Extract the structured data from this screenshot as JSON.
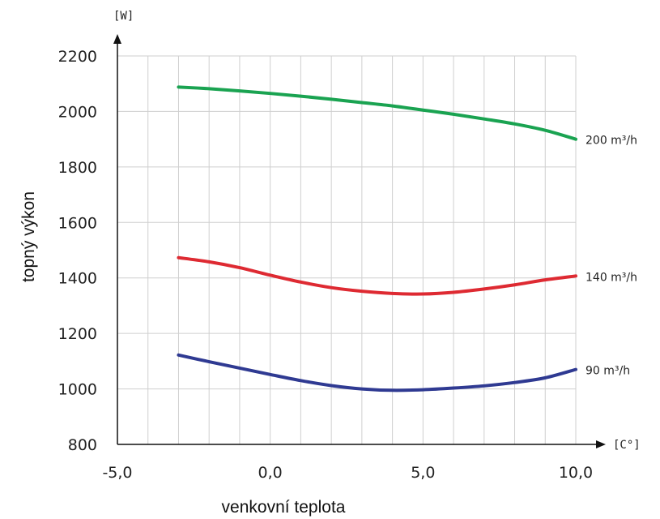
{
  "chart_data": {
    "type": "line",
    "xlabel": "venkovní teplota",
    "ylabel": "topný výkon",
    "x_unit": "[C°]",
    "y_unit": "[W]",
    "xlim": [
      -5,
      10
    ],
    "ylim": [
      800,
      2200
    ],
    "x_ticks": [
      -5,
      0,
      5,
      10
    ],
    "x_tick_labels": [
      "-5,0",
      "0,0",
      "5,0",
      "10,0"
    ],
    "y_ticks": [
      800,
      1000,
      1200,
      1400,
      1600,
      1800,
      2000,
      2200
    ],
    "y_tick_labels": [
      "800",
      "1000",
      "1200",
      "1400",
      "1600",
      "1800",
      "2000",
      "2200"
    ],
    "grid": true,
    "series": [
      {
        "name": "200 m³/h",
        "color": "#1aa351",
        "x": [
          -3,
          -2,
          -1,
          0,
          1,
          2,
          3,
          4,
          5,
          6,
          7,
          8,
          9,
          10
        ],
        "values": [
          2088,
          2082,
          2074,
          2065,
          2055,
          2044,
          2032,
          2020,
          2005,
          1990,
          1973,
          1955,
          1932,
          1900
        ]
      },
      {
        "name": "140 m³/h",
        "color": "#de2a32",
        "x": [
          -3,
          -2,
          -1,
          0,
          1,
          2,
          3,
          4,
          5,
          6,
          7,
          8,
          9,
          10
        ],
        "values": [
          1473,
          1458,
          1437,
          1410,
          1385,
          1365,
          1352,
          1344,
          1342,
          1348,
          1360,
          1375,
          1393,
          1407
        ]
      },
      {
        "name": "90 m³/h",
        "color": "#2f3a92",
        "x": [
          -3,
          -2,
          -1,
          0,
          1,
          2,
          3,
          4,
          5,
          6,
          7,
          8,
          9,
          10
        ],
        "values": [
          1122,
          1098,
          1075,
          1052,
          1030,
          1012,
          1000,
          995,
          997,
          1003,
          1011,
          1023,
          1040,
          1070
        ]
      }
    ]
  }
}
